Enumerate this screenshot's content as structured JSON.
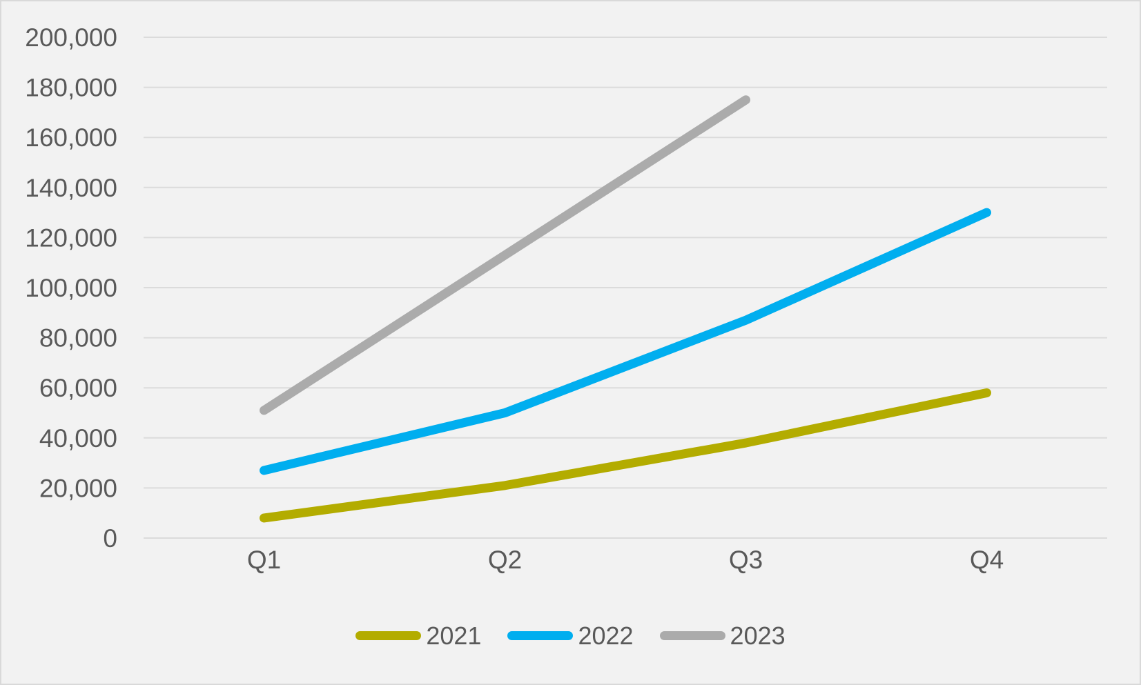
{
  "chart_data": {
    "type": "line",
    "title": "",
    "xlabel": "",
    "ylabel": "",
    "categories": [
      "Q1",
      "Q2",
      "Q3",
      "Q4"
    ],
    "series": [
      {
        "name": "2021",
        "color": "#B3AC00",
        "values": [
          8000,
          21000,
          38000,
          58000
        ]
      },
      {
        "name": "2022",
        "color": "#00AEEF",
        "values": [
          27000,
          50000,
          87000,
          130000
        ]
      },
      {
        "name": "2023",
        "color": "#ABABAB",
        "values": [
          51000,
          113000,
          175000
        ]
      }
    ],
    "ylim": [
      0,
      200000
    ],
    "ytick_values": [
      0,
      20000,
      40000,
      60000,
      80000,
      100000,
      120000,
      140000,
      160000,
      180000,
      200000
    ],
    "ytick_labels": [
      "0",
      "20,000",
      "40,000",
      "60,000",
      "80,000",
      "100,000",
      "120,000",
      "140,000",
      "160,000",
      "180,000",
      "200,000"
    ],
    "grid": true,
    "legend_position": "bottom",
    "colors": {
      "background": "#F2F2F2",
      "gridline": "#DBDBDB",
      "text": "#595959",
      "border": "#D9D9D9"
    }
  }
}
